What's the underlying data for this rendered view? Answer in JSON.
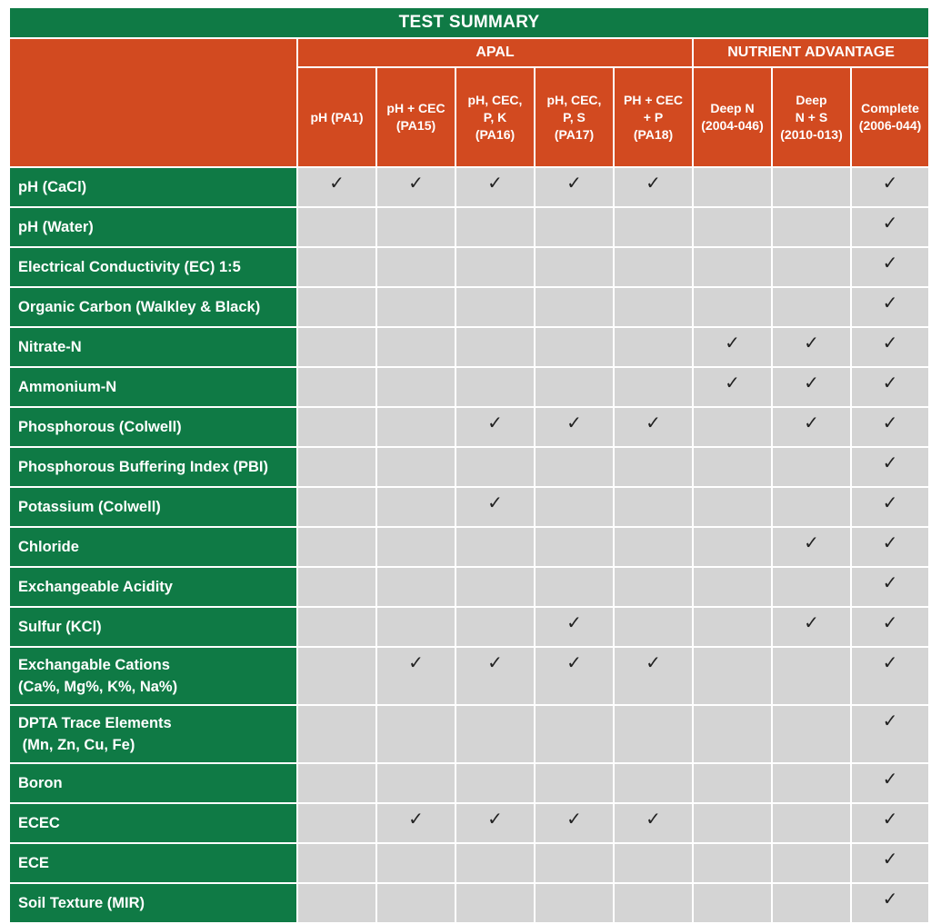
{
  "title": "TEST SUMMARY",
  "groups": {
    "apal": "APAL",
    "nutrient_advantage": "NUTRIENT ADVANTAGE"
  },
  "columns": [
    {
      "l1": "pH (PA1)",
      "l2": "",
      "l3": "",
      "l4": ""
    },
    {
      "l1": "pH + CEC",
      "l2": "(PA15)",
      "l3": "",
      "l4": ""
    },
    {
      "l1": "pH, CEC,",
      "l2": "P, K",
      "l3": "(PA16)",
      "l4": ""
    },
    {
      "l1": "pH, CEC,",
      "l2": "P, S",
      "l3": "(PA17)",
      "l4": ""
    },
    {
      "l1": "PH + CEC",
      "l2": "+ P",
      "l3": "(PA18)",
      "l4": ""
    },
    {
      "l1": "Deep N",
      "l2": "(2004-046)",
      "l3": "",
      "l4": ""
    },
    {
      "l1": "Deep",
      "l2": "N + S",
      "l3": "(2010-013)",
      "l4": ""
    },
    {
      "l1": "Complete",
      "l2": "(2006-044)",
      "l3": "",
      "l4": ""
    }
  ],
  "check_mark": "✓",
  "rows": [
    {
      "label": "pH (CaCl)",
      "label2": "",
      "checks": [
        "✓",
        "✓",
        "✓",
        "✓",
        "✓",
        "",
        "",
        "✓"
      ]
    },
    {
      "label": "pH (Water)",
      "label2": "",
      "checks": [
        "",
        "",
        "",
        "",
        "",
        "",
        "",
        "✓"
      ]
    },
    {
      "label": "Electrical Conductivity (EC) 1:5",
      "label2": "",
      "checks": [
        "",
        "",
        "",
        "",
        "",
        "",
        "",
        "✓"
      ]
    },
    {
      "label": "Organic Carbon (Walkley & Black)",
      "label2": "",
      "checks": [
        "",
        "",
        "",
        "",
        "",
        "",
        "",
        "✓"
      ]
    },
    {
      "label": "Nitrate-N",
      "label2": "",
      "checks": [
        "",
        "",
        "",
        "",
        "",
        "✓",
        "✓",
        "✓"
      ]
    },
    {
      "label": "Ammonium-N",
      "label2": "",
      "checks": [
        "",
        "",
        "",
        "",
        "",
        "✓",
        "✓",
        "✓"
      ]
    },
    {
      "label": "Phosphorous (Colwell)",
      "label2": "",
      "checks": [
        "",
        "",
        "✓",
        "✓",
        "✓",
        "",
        "✓",
        "✓"
      ]
    },
    {
      "label": "Phosphorous Buffering Index (PBI)",
      "label2": "",
      "checks": [
        "",
        "",
        "",
        "",
        "",
        "",
        "",
        "✓"
      ]
    },
    {
      "label": "Potassium (Colwell)",
      "label2": "",
      "checks": [
        "",
        "",
        "✓",
        "",
        "",
        "",
        "",
        "✓"
      ]
    },
    {
      "label": "Chloride",
      "label2": "",
      "checks": [
        "",
        "",
        "",
        "",
        "",
        "",
        "✓",
        "✓"
      ]
    },
    {
      "label": "Exchangeable Acidity",
      "label2": "",
      "checks": [
        "",
        "",
        "",
        "",
        "",
        "",
        "",
        "✓"
      ]
    },
    {
      "label": "Sulfur (KCl)",
      "label2": "",
      "checks": [
        "",
        "",
        "",
        "✓",
        "",
        "",
        "✓",
        "✓"
      ]
    },
    {
      "label": "Exchangable Cations",
      "label2": "(Ca%, Mg%, K%, Na%)",
      "checks": [
        "",
        "✓",
        "✓",
        "✓",
        "✓",
        "",
        "",
        "✓"
      ]
    },
    {
      "label": "DPTA Trace Elements",
      "label2": " (Mn, Zn, Cu, Fe)",
      "checks": [
        "",
        "",
        "",
        "",
        "",
        "",
        "",
        "✓"
      ]
    },
    {
      "label": "Boron",
      "label2": "",
      "checks": [
        "",
        "",
        "",
        "",
        "",
        "",
        "",
        "✓"
      ]
    },
    {
      "label": "ECEC",
      "label2": "",
      "checks": [
        "",
        "✓",
        "✓",
        "✓",
        "✓",
        "",
        "",
        "✓"
      ]
    },
    {
      "label": "ECE",
      "label2": "",
      "checks": [
        "",
        "",
        "",
        "",
        "",
        "",
        "",
        "✓"
      ]
    },
    {
      "label": "Soil Texture (MIR)",
      "label2": "",
      "checks": [
        "",
        "",
        "",
        "",
        "",
        "",
        "",
        "✓"
      ]
    }
  ]
}
